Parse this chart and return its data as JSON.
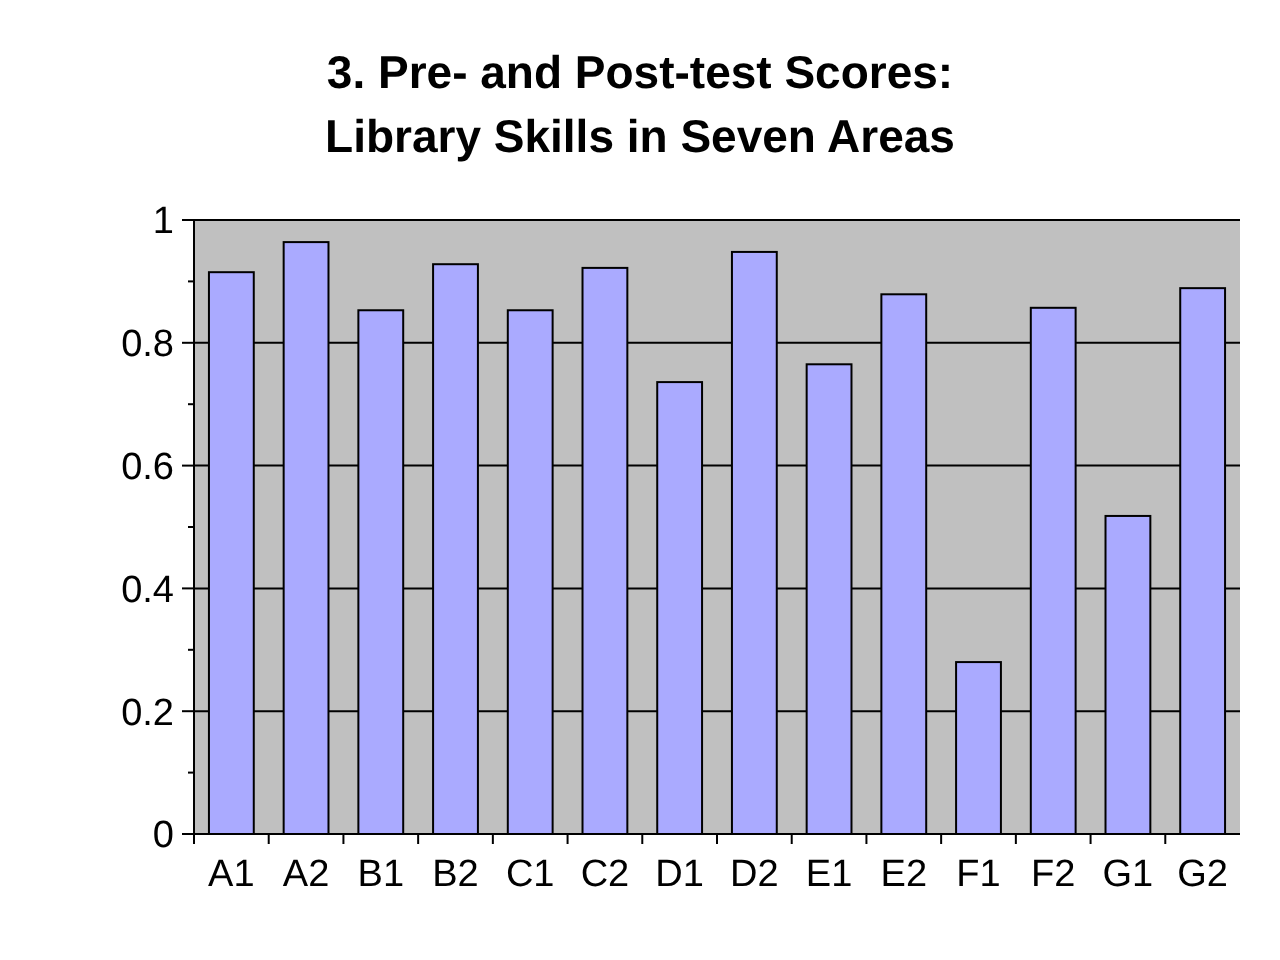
{
  "chart_data": {
    "type": "bar",
    "title": "3. Pre- and Post-test Scores:\nLibrary Skills in Seven Areas",
    "categories": [
      "A1",
      "A2",
      "B1",
      "B2",
      "C1",
      "C2",
      "D1",
      "D2",
      "E1",
      "E2",
      "F1",
      "F2",
      "G1",
      "G2"
    ],
    "values": [
      0.915,
      0.964,
      0.853,
      0.928,
      0.853,
      0.922,
      0.736,
      0.948,
      0.765,
      0.879,
      0.28,
      0.857,
      0.518,
      0.889
    ],
    "color": "#aaaaff",
    "ylim": [
      0,
      1
    ],
    "yticks": [
      0,
      {
        "value": 0.1,
        "label": null
      },
      0.2,
      {
        "value": 0.3,
        "label": null
      },
      0.4,
      {
        "value": 0.5,
        "label": null
      },
      0.6,
      {
        "value": 0.7,
        "label": null
      },
      0.8,
      {
        "value": 0.9,
        "label": null
      },
      1
    ],
    "grid": "y"
  }
}
